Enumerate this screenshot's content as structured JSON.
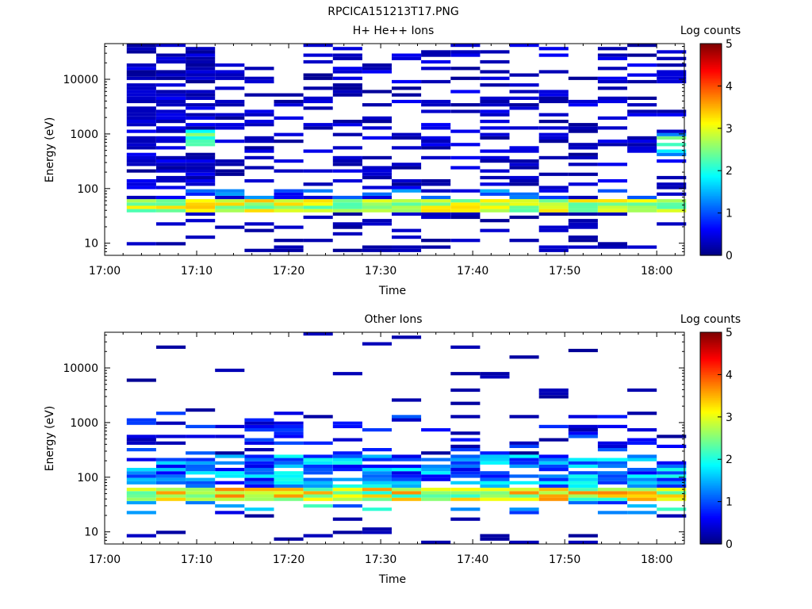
{
  "figure_title": "RPCICA151213T17.PNG",
  "chart_data": [
    {
      "type": "heatmap",
      "title": "H+ He++ Ions",
      "xlabel": "Time",
      "ylabel": "Energy (eV)",
      "x_ticks": [
        "17:00",
        "17:10",
        "17:20",
        "17:30",
        "17:40",
        "17:50",
        "18:00"
      ],
      "x_range": [
        "17:00",
        "18:03"
      ],
      "y_scale": "log",
      "y_ticks": [
        "10",
        "100",
        "1000",
        "10000"
      ],
      "y_range": [
        6,
        45000
      ],
      "colorbar": {
        "label": "Log counts",
        "ticks": [
          "0",
          "1",
          "2",
          "3",
          "4",
          "5"
        ],
        "range": [
          0,
          5
        ],
        "colormap": "jet"
      },
      "grid": false
    },
    {
      "type": "heatmap",
      "title": "Other Ions",
      "xlabel": "Time",
      "ylabel": "Energy (eV)",
      "x_ticks": [
        "17:00",
        "17:10",
        "17:20",
        "17:30",
        "17:40",
        "17:50",
        "18:00"
      ],
      "x_range": [
        "17:00",
        "18:03"
      ],
      "y_scale": "log",
      "y_ticks": [
        "10",
        "100",
        "1000",
        "10000"
      ],
      "y_range": [
        6,
        45000
      ],
      "colorbar": {
        "label": "Log counts",
        "ticks": [
          "0",
          "1",
          "2",
          "3",
          "4",
          "5"
        ],
        "range": [
          0,
          5
        ],
        "colormap": "jet"
      },
      "grid": false
    }
  ]
}
